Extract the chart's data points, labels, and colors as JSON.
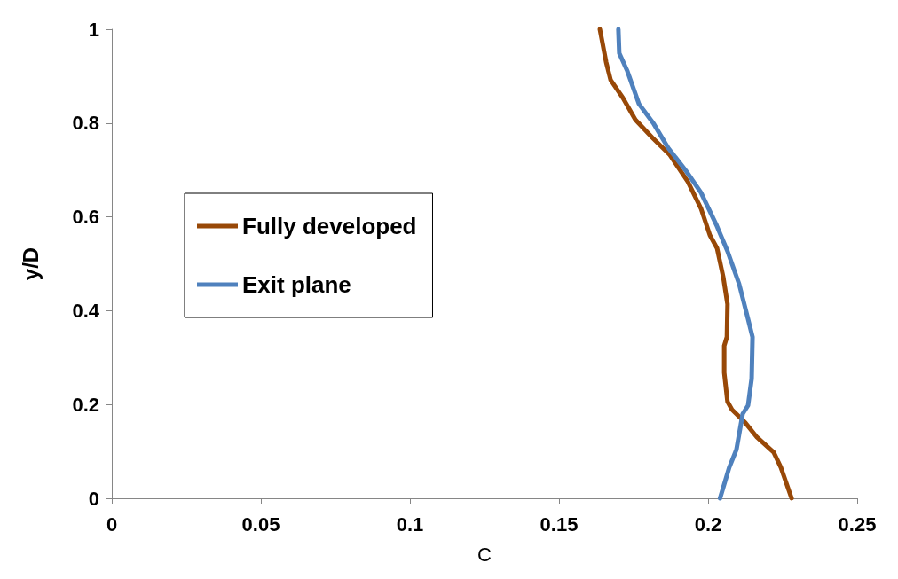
{
  "chart_data": {
    "type": "line",
    "xlabel": "C",
    "ylabel": "y/D",
    "xlim": [
      0,
      0.25
    ],
    "xticks": [
      0,
      0.05,
      0.1,
      0.15,
      0.2,
      0.25
    ],
    "ylim": [
      0,
      1
    ],
    "yticks": [
      0,
      0.2,
      0.4,
      0.6,
      0.8,
      1
    ],
    "grid": false,
    "legend": "left",
    "marker": "none",
    "line_style": "solid",
    "series": [
      {
        "name": "Fully developed",
        "color": "#984807",
        "x": [
          0.228,
          0.2244,
          0.222,
          0.2164,
          0.2125,
          0.208,
          0.2065,
          0.2054,
          0.2054,
          0.2063,
          0.2065,
          0.2051,
          0.203,
          0.2006,
          0.1976,
          0.1932,
          0.1872,
          0.1813,
          0.1756,
          0.1714,
          0.1673,
          0.1658,
          0.1637
        ],
        "values": [
          0,
          0.066,
          0.098,
          0.13,
          0.161,
          0.189,
          0.206,
          0.268,
          0.325,
          0.344,
          0.414,
          0.471,
          0.533,
          0.561,
          0.618,
          0.675,
          0.732,
          0.769,
          0.807,
          0.854,
          0.892,
          0.93,
          1
        ]
      },
      {
        "name": "Exit plane",
        "color": "#4f81bd",
        "x": [
          0.204,
          0.2071,
          0.2095,
          0.2116,
          0.2134,
          0.2146,
          0.2149,
          0.2134,
          0.2104,
          0.2065,
          0.2027,
          0.1976,
          0.1926,
          0.1866,
          0.1818,
          0.1768,
          0.1729,
          0.1702,
          0.1699
        ],
        "values": [
          0,
          0.066,
          0.104,
          0.18,
          0.198,
          0.255,
          0.344,
          0.382,
          0.457,
          0.527,
          0.584,
          0.652,
          0.698,
          0.747,
          0.798,
          0.841,
          0.911,
          0.949,
          1
        ]
      }
    ]
  }
}
